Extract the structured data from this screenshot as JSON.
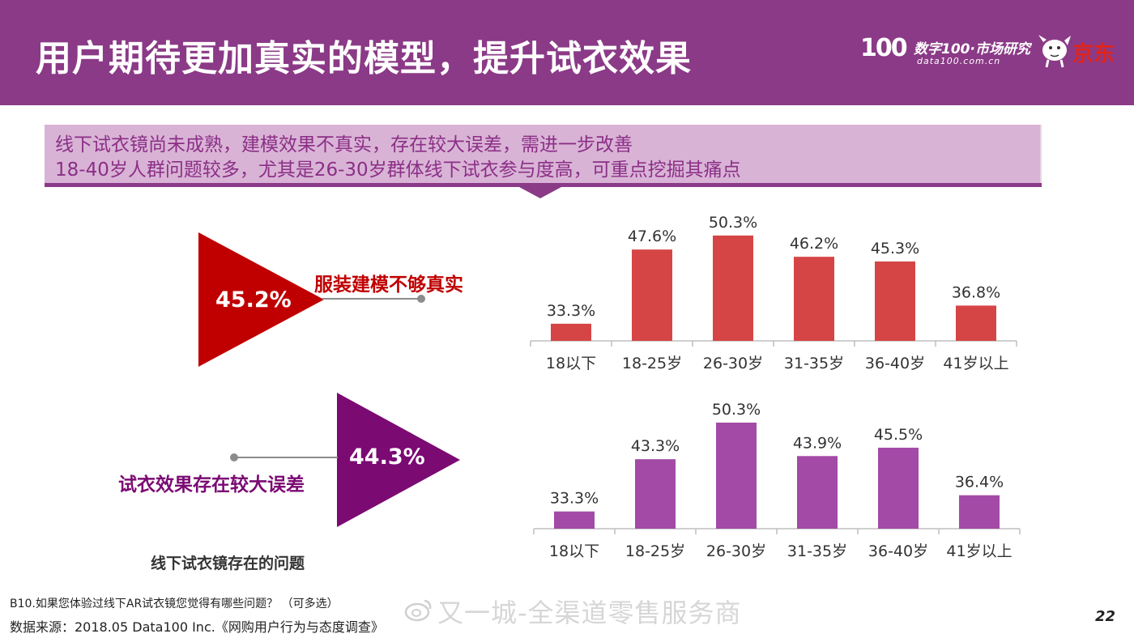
{
  "header": {
    "title": "用户期待更加真实的模型，提升试衣效果",
    "logo_data100": "100",
    "logo_data100_cn": "数字100·市场研究",
    "logo_data100_url": "data100.com.cn",
    "logo_jd": "京东"
  },
  "banner": {
    "line1": "线下试衣镜尚未成熟，建模效果不真实，存在较大误差，需进一步改善",
    "line2": "18-40岁人群问题较多，尤其是26-30岁群体线下试衣参与度高，可重点挖掘其痛点"
  },
  "issues": [
    {
      "value": "45.2%",
      "label": "服装建模不够真实",
      "color": "#c00000"
    },
    {
      "value": "44.3%",
      "label": "试衣效果存在较大误差",
      "color": "#7b0a73"
    }
  ],
  "section_caption": "线下试衣镜存在的问题",
  "chart_data": [
    {
      "type": "bar",
      "categories": [
        "18以下",
        "18-25岁",
        "26-30岁",
        "31-35岁",
        "36-40岁",
        "41岁以上"
      ],
      "values": [
        33.3,
        47.6,
        50.3,
        46.2,
        45.3,
        36.8
      ],
      "data_labels": [
        "33.3%",
        "47.6%",
        "50.3%",
        "46.2%",
        "45.3%",
        "36.8%"
      ],
      "ylim": [
        30,
        52
      ],
      "color": "#d64545",
      "grid": false
    },
    {
      "type": "bar",
      "categories": [
        "18以下",
        "18-25岁",
        "26-30岁",
        "31-35岁",
        "36-40岁",
        "41岁以上"
      ],
      "values": [
        33.3,
        43.3,
        50.3,
        43.9,
        45.5,
        36.4
      ],
      "data_labels": [
        "33.3%",
        "43.3%",
        "50.3%",
        "43.9%",
        "45.5%",
        "36.4%"
      ],
      "ylim": [
        30,
        52
      ],
      "color": "#a34aa6",
      "grid": false
    }
  ],
  "footer": {
    "question": "B10.如果您体验过线下AR试衣镜您觉得有哪些问题？ （可多选）",
    "source": "数据来源：2018.05 Data100 Inc.《网购用户行为与态度调查》",
    "watermark": "又一城-全渠道零售服务商",
    "page_number": "22"
  }
}
